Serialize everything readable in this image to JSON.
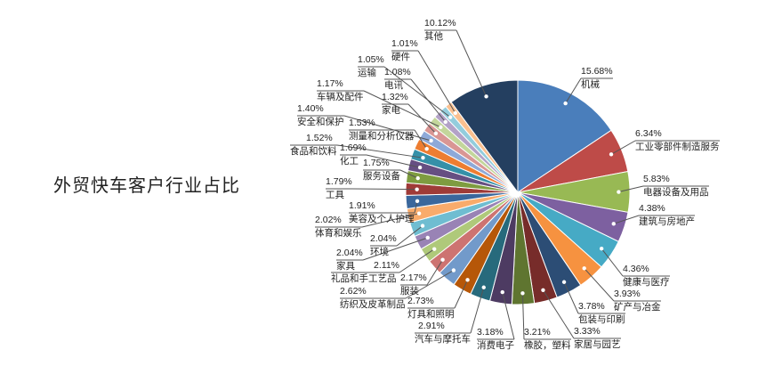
{
  "chart_data": {
    "type": "pie",
    "title": "外贸快车客户行业占比",
    "unit": "%",
    "slices": [
      {
        "label": "机械",
        "value": 15.68,
        "color": "#4A7EBB"
      },
      {
        "label": "工业零部件制造服务",
        "value": 6.34,
        "color": "#BE4B48"
      },
      {
        "label": "电器设备及用品",
        "value": 5.83,
        "color": "#98B954"
      },
      {
        "label": "建筑与房地产",
        "value": 4.38,
        "color": "#7D60A0"
      },
      {
        "label": "健康与医疗",
        "value": 4.36,
        "color": "#46AAC5"
      },
      {
        "label": "矿产与冶金",
        "value": 3.93,
        "color": "#F69240"
      },
      {
        "label": "包装与印刷",
        "value": 3.78,
        "color": "#2C4D75"
      },
      {
        "label": "家居与园艺",
        "value": 3.33,
        "color": "#772C2A"
      },
      {
        "label": "橡胶，塑料",
        "value": 3.21,
        "color": "#5F7530"
      },
      {
        "label": "消费电子",
        "value": 3.18,
        "color": "#4D3B62"
      },
      {
        "label": "汽车与摩托车",
        "value": 2.91,
        "color": "#276A7C"
      },
      {
        "label": "灯具和照明",
        "value": 2.73,
        "color": "#B65708"
      },
      {
        "label": "纺织及皮革制品",
        "value": 2.62,
        "color": "#729ACA"
      },
      {
        "label": "服装",
        "value": 2.17,
        "color": "#CD7371"
      },
      {
        "label": "礼品和手工艺品",
        "value": 2.11,
        "color": "#AFC97A"
      },
      {
        "label": "家具",
        "value": 2.04,
        "color": "#9983B5"
      },
      {
        "label": "环境",
        "value": 2.04,
        "color": "#6FBDD1"
      },
      {
        "label": "体育和娱乐",
        "value": 2.02,
        "color": "#F9AB6B"
      },
      {
        "label": "美容及个人护理",
        "value": 1.91,
        "color": "#3A679C"
      },
      {
        "label": "工具",
        "value": 1.79,
        "color": "#9F3B38"
      },
      {
        "label": "服务设备",
        "value": 1.75,
        "color": "#7E9C40"
      },
      {
        "label": "化工",
        "value": 1.69,
        "color": "#664F82"
      },
      {
        "label": "食品和饮料",
        "value": 1.52,
        "color": "#3590A8"
      },
      {
        "label": "测量和分析仪器",
        "value": 1.53,
        "color": "#ED7D31"
      },
      {
        "label": "安全和保护",
        "value": 1.4,
        "color": "#8EA9D8"
      },
      {
        "label": "家电",
        "value": 1.32,
        "color": "#D99694"
      },
      {
        "label": "车辆及配件",
        "value": 1.17,
        "color": "#C3D69B"
      },
      {
        "label": "电讯",
        "value": 1.08,
        "color": "#B3A2C7"
      },
      {
        "label": "运输",
        "value": 1.05,
        "color": "#93CDDD"
      },
      {
        "label": "硬件",
        "value": 1.01,
        "color": "#FAC090"
      },
      {
        "label": "其他",
        "value": 10.12,
        "color": "#243F60"
      }
    ]
  }
}
